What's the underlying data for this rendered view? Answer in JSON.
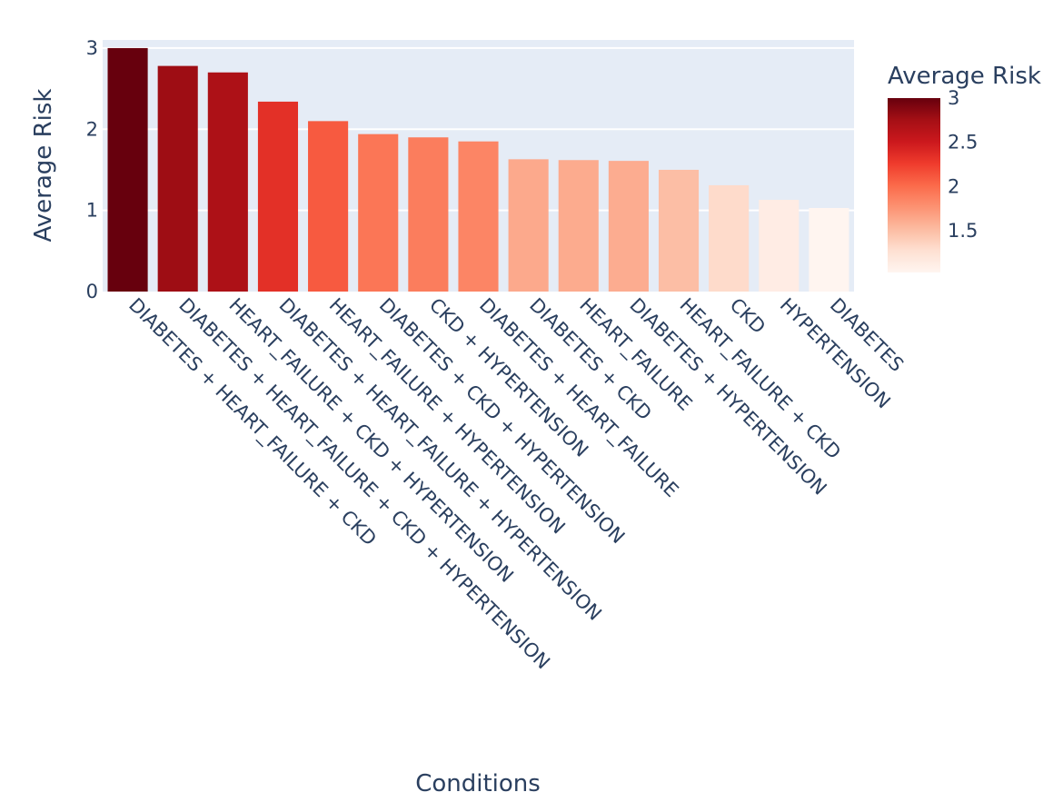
{
  "chart_data": {
    "type": "bar",
    "xlabel": "Conditions",
    "ylabel": "Average Risk",
    "categories": [
      "DIABETES + HEART_FAILURE + CKD",
      "DIABETES + HEART_FAILURE + CKD + HYPERTENSION",
      "HEART_FAILURE + CKD + HYPERTENSION",
      "DIABETES + HEART_FAILURE + HYPERTENSION",
      "HEART_FAILURE + HYPERTENSION",
      "DIABETES + CKD + HYPERTENSION",
      "CKD + HYPERTENSION",
      "DIABETES + HEART_FAILURE",
      "DIABETES + CKD",
      "HEART_FAILURE",
      "DIABETES + HYPERTENSION",
      "HEART_FAILURE + CKD",
      "CKD",
      "HYPERTENSION",
      "DIABETES"
    ],
    "values": [
      3.0,
      2.78,
      2.7,
      2.34,
      2.1,
      1.94,
      1.9,
      1.85,
      1.63,
      1.62,
      1.61,
      1.5,
      1.31,
      1.13,
      1.03
    ],
    "ylim": [
      0,
      3.1
    ],
    "yticks": [
      "0",
      "1",
      "2",
      "3"
    ],
    "grid": true,
    "colorbar": {
      "title": "Average Risk",
      "range": [
        1.03,
        3.0
      ],
      "ticks": [
        "1.5",
        "2",
        "2.5",
        "3"
      ],
      "tick_values": [
        1.5,
        2,
        2.5,
        3
      ]
    },
    "colorscale": [
      "#fff5f0",
      "#fee0d2",
      "#fcbba1",
      "#fc9272",
      "#fb6a4a",
      "#ef3b2c",
      "#cb181d",
      "#a50f15",
      "#67000d"
    ],
    "plot_background": "#e5ecf6"
  }
}
